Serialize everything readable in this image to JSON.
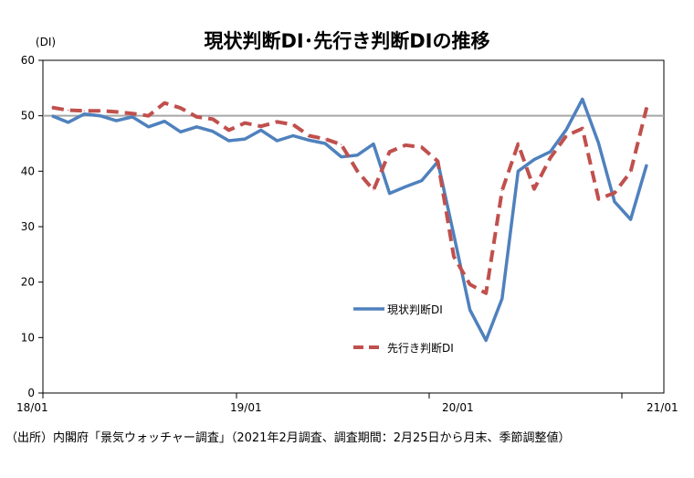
{
  "chart_data": {
    "type": "line",
    "title": "現状判断DI･先行き判断DIの推移",
    "y_unit_label": "(DI)",
    "ylim": [
      0,
      60
    ],
    "yticks": [
      0,
      10,
      20,
      30,
      40,
      50,
      60
    ],
    "x_tick_labels": [
      {
        "label": "18/01",
        "index": 0
      },
      {
        "label": "19/01",
        "index": 12
      },
      {
        "label": "20/01",
        "index": 24
      },
      {
        "label": "21/01",
        "index": 36
      }
    ],
    "x": [
      "2018-01",
      "2018-02",
      "2018-03",
      "2018-04",
      "2018-05",
      "2018-06",
      "2018-07",
      "2018-08",
      "2018-09",
      "2018-10",
      "2018-11",
      "2018-12",
      "2019-01",
      "2019-02",
      "2019-03",
      "2019-04",
      "2019-05",
      "2019-06",
      "2019-07",
      "2019-08",
      "2019-09",
      "2019-10",
      "2019-11",
      "2019-12",
      "2020-01",
      "2020-02",
      "2020-03",
      "2020-04",
      "2020-05",
      "2020-06",
      "2020-07",
      "2020-08",
      "2020-09",
      "2020-10",
      "2020-11",
      "2020-12",
      "2021-01",
      "2021-02"
    ],
    "reference_line": 50,
    "legend_position": "center",
    "grid": false,
    "series": [
      {
        "name": "現状判断DI",
        "color": "#4f81bd",
        "style": "solid",
        "values": [
          50.0,
          48.8,
          50.3,
          50.0,
          49.1,
          49.8,
          48.0,
          49.0,
          47.1,
          48.0,
          47.2,
          45.5,
          45.8,
          47.4,
          45.5,
          46.4,
          45.6,
          45.0,
          42.6,
          42.9,
          44.9,
          36.0,
          37.2,
          38.3,
          41.7,
          28.5,
          15.0,
          9.5,
          17.0,
          40.0,
          42.1,
          43.5,
          47.5,
          53.0,
          45.1,
          34.5,
          31.3,
          41.2
        ]
      },
      {
        "name": "先行き判断DI",
        "color": "#c0504d",
        "style": "dashed",
        "values": [
          51.5,
          51.0,
          50.9,
          50.9,
          50.7,
          50.4,
          50.0,
          52.3,
          51.4,
          49.8,
          49.4,
          47.4,
          48.7,
          48.1,
          48.9,
          48.4,
          46.4,
          45.8,
          44.8,
          40.0,
          36.6,
          43.5,
          44.7,
          44.3,
          41.8,
          24.6,
          19.6,
          18.0,
          36.5,
          44.9,
          36.8,
          42.4,
          46.4,
          47.7,
          35.0,
          36.1,
          39.9,
          51.5
        ]
      }
    ]
  },
  "source_note": "（出所）内閣府「景気ウォッチャー調査」（2021年2月調査、調査期間：2月25日から月末、季節調整値）"
}
